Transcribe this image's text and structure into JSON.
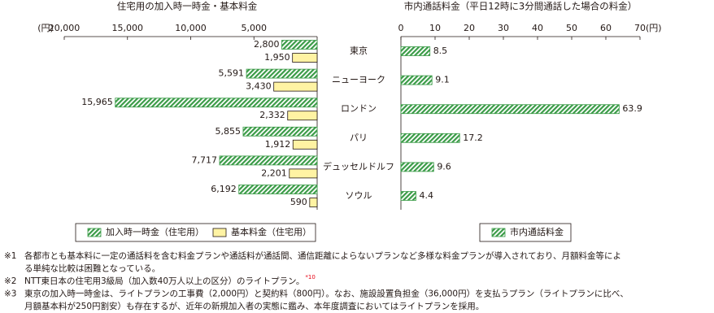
{
  "chart_data": [
    {
      "type": "bar",
      "orientation": "horizontal",
      "x_reversed": true,
      "title": "住宅用の加入時一時金・基本料金",
      "x_unit": "(円)",
      "categories": [
        "東京",
        "ニューヨーク",
        "ロンドン",
        "パリ",
        "デュッセルドルフ",
        "ソウル"
      ],
      "xlim": [
        0,
        20000
      ],
      "xticks": [
        {
          "value": 20000,
          "label": "20,000"
        },
        {
          "value": 15000,
          "label": "15,000"
        },
        {
          "value": 10000,
          "label": "10,000"
        },
        {
          "value": 5000,
          "label": "5,000"
        }
      ],
      "series": [
        {
          "name": "加入時一時金（住宅用）",
          "color": "#3a9b47",
          "pattern": "hatch",
          "values": [
            2800,
            5591,
            15965,
            5855,
            7717,
            6192
          ],
          "value_labels": [
            "2,800",
            "5,591",
            "15,965",
            "5,855",
            "7,717",
            "6,192"
          ]
        },
        {
          "name": "基本料金（住宅用）",
          "color": "#fff3a3",
          "pattern": "solid",
          "values": [
            1950,
            3430,
            2332,
            1912,
            2201,
            590
          ],
          "value_labels": [
            "1,950",
            "3,430",
            "2,332",
            "1,912",
            "2,201",
            "590"
          ]
        }
      ]
    },
    {
      "type": "bar",
      "orientation": "horizontal",
      "x_reversed": false,
      "title": "市内通話料金（平日12時に3分間通話した場合の料金）",
      "x_unit": "(円)",
      "xlim": [
        0,
        70
      ],
      "xticks": [
        0,
        10,
        20,
        30,
        40,
        50,
        60,
        70
      ],
      "series": [
        {
          "name": "市内通話料金",
          "color": "#3a9b47",
          "pattern": "hatch",
          "values": [
            8.5,
            9.1,
            63.9,
            17.2,
            9.6,
            4.4
          ]
        }
      ]
    }
  ],
  "notes": [
    {
      "mark": "※1",
      "lines": [
        "各都市とも基本料に一定の通話料を含む料金プランや通話料が通話間、通信距離によらないプランなど多様な料金プランが導入されており、月額料金等によ",
        "る単純な比較は困難となっている。"
      ]
    },
    {
      "mark": "※2",
      "lines": [
        "NTT東日本の住宅用3級局（加入数40万人以上の区分）のライトプラン。"
      ],
      "sup": "*10"
    },
    {
      "mark": "※3",
      "lines": [
        "東京の加入時一時金は、ライトプランの工事費（2,000円）と契約料（800円）。なお、施設設置負担金（36,000円）を支払うプラン（ライトプランに比べ、",
        "月額基本料が250円割安）も存在するが、近年の新規加入者の実態に鑑み、本年度調査においてはライトプランを採用。"
      ]
    }
  ]
}
